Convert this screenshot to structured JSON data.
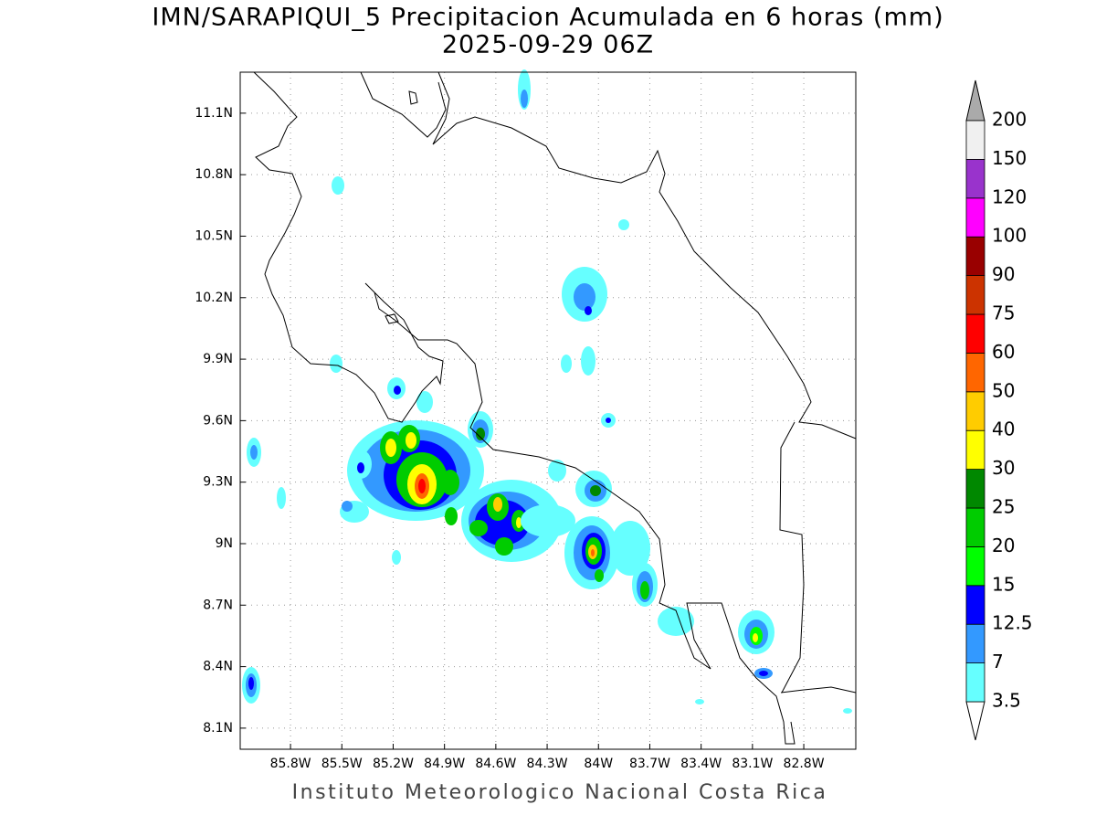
{
  "title": "IMN/SARAPIQUI_5 Precipitacion Acumulada en 6 horas (mm)",
  "subtitle": "2025-09-29 06Z",
  "footer": "Instituto Meteorologico Nacional Costa Rica",
  "map": {
    "xlim": [
      -86.094,
      -82.496
    ],
    "ylim": [
      7.997,
      11.3
    ],
    "xticks": [
      {
        "value": -85.8,
        "label": "85.8W"
      },
      {
        "value": -85.5,
        "label": "85.5W"
      },
      {
        "value": -85.2,
        "label": "85.2W"
      },
      {
        "value": -84.9,
        "label": "84.9W"
      },
      {
        "value": -84.6,
        "label": "84.6W"
      },
      {
        "value": -84.3,
        "label": "84.3W"
      },
      {
        "value": -84,
        "label": "84W"
      },
      {
        "value": -83.7,
        "label": "83.7W"
      },
      {
        "value": -83.4,
        "label": "83.4W"
      },
      {
        "value": -83.1,
        "label": "83.1W"
      },
      {
        "value": -82.8,
        "label": "82.8W"
      }
    ],
    "yticks": [
      {
        "value": 8.1,
        "label": "8.1N"
      },
      {
        "value": 8.4,
        "label": "8.4N"
      },
      {
        "value": 8.7,
        "label": "8.7N"
      },
      {
        "value": 9,
        "label": "9N"
      },
      {
        "value": 9.3,
        "label": "9.3N"
      },
      {
        "value": 9.6,
        "label": "9.6N"
      },
      {
        "value": 9.9,
        "label": "9.9N"
      },
      {
        "value": 10.2,
        "label": "10.2N"
      },
      {
        "value": 10.5,
        "label": "10.5N"
      },
      {
        "value": 10.8,
        "label": "10.8N"
      },
      {
        "value": 11.1,
        "label": "11.1N"
      }
    ],
    "grid": true
  },
  "colorbar": {
    "levels": [
      3.5,
      7,
      12.5,
      15,
      20,
      25,
      30,
      40,
      50,
      60,
      75,
      90,
      100,
      120,
      150,
      200
    ],
    "colors": [
      "#66ffff",
      "#3399ff",
      "#0000ff",
      "#00ff00",
      "#00cc00",
      "#008800",
      "#ffff00",
      "#ffcc00",
      "#ff6600",
      "#ff0000",
      "#cc3300",
      "#990000",
      "#ff00ff",
      "#9933cc",
      "#f0f0f0"
    ],
    "below_color": "#ffffff",
    "above_color": "#aaaaaa"
  }
}
